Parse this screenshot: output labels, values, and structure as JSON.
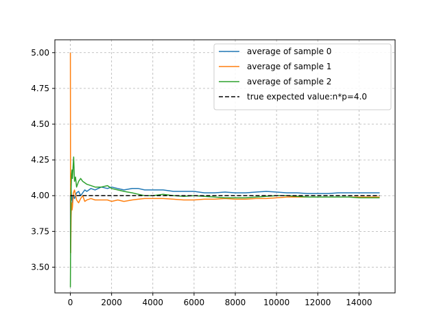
{
  "chart_data": {
    "type": "line",
    "title": "",
    "xlabel": "",
    "ylabel": "",
    "xlim": [
      -750,
      15750
    ],
    "ylim": [
      3.32,
      5.09
    ],
    "xticks": [
      0,
      2000,
      4000,
      6000,
      8000,
      10000,
      12000,
      14000
    ],
    "yticks": [
      3.5,
      3.75,
      4.0,
      4.25,
      4.5,
      4.75,
      5.0
    ],
    "xtick_labels": [
      "0",
      "2000",
      "4000",
      "6000",
      "8000",
      "10000",
      "12000",
      "14000"
    ],
    "ytick_labels": [
      "3.50",
      "3.75",
      "4.00",
      "4.25",
      "4.50",
      "4.75",
      "5.00"
    ],
    "grid": true,
    "legend_position": "top-right",
    "series": [
      {
        "name": "average of sample 0",
        "color": "#1f77b4",
        "style": "solid",
        "x": [
          1,
          10,
          20,
          40,
          60,
          80,
          100,
          150,
          200,
          300,
          400,
          500,
          600,
          700,
          800,
          1000,
          1200,
          1500,
          1800,
          2000,
          2300,
          2600,
          3000,
          3300,
          3600,
          4000,
          4500,
          5000,
          5500,
          6000,
          6500,
          7000,
          7500,
          8000,
          8500,
          9000,
          9500,
          10000,
          10500,
          11000,
          11500,
          12000,
          12500,
          13000,
          13500,
          14000,
          14500,
          15000
        ],
        "y": [
          4.0,
          3.6,
          3.9,
          4.05,
          3.97,
          4.0,
          3.95,
          4.0,
          3.98,
          4.02,
          4.03,
          4.0,
          4.02,
          4.04,
          4.03,
          4.05,
          4.04,
          4.06,
          4.05,
          4.06,
          4.05,
          4.04,
          4.05,
          4.05,
          4.04,
          4.04,
          4.04,
          4.03,
          4.03,
          4.03,
          4.02,
          4.02,
          4.025,
          4.02,
          4.02,
          4.025,
          4.03,
          4.025,
          4.02,
          4.02,
          4.015,
          4.015,
          4.015,
          4.02,
          4.02,
          4.02,
          4.02,
          4.02
        ]
      },
      {
        "name": "average of sample 1",
        "color": "#ff7f0e",
        "style": "solid",
        "x": [
          1,
          5,
          10,
          20,
          40,
          60,
          80,
          100,
          150,
          200,
          300,
          400,
          500,
          600,
          700,
          800,
          1000,
          1200,
          1500,
          1800,
          2000,
          2300,
          2600,
          3000,
          3300,
          3600,
          4000,
          4500,
          5000,
          5500,
          6000,
          6500,
          7000,
          7500,
          8000,
          8500,
          9000,
          9500,
          10000,
          10500,
          11000,
          11500,
          12000,
          12500,
          13000,
          13500,
          14000,
          14500,
          15000
        ],
        "y": [
          5.0,
          4.6,
          4.2,
          3.6,
          3.85,
          3.95,
          3.9,
          3.92,
          4.02,
          4.04,
          3.97,
          3.95,
          3.98,
          4.0,
          3.96,
          3.97,
          3.98,
          3.97,
          3.97,
          3.97,
          3.96,
          3.97,
          3.96,
          3.97,
          3.975,
          3.98,
          3.98,
          3.98,
          3.975,
          3.97,
          3.97,
          3.975,
          3.975,
          3.98,
          3.975,
          3.975,
          3.98,
          3.98,
          3.985,
          3.99,
          3.99,
          3.99,
          3.99,
          3.99,
          3.99,
          3.99,
          3.99,
          3.99,
          3.99
        ]
      },
      {
        "name": "average of sample 2",
        "color": "#2ca02c",
        "style": "solid",
        "x": [
          1,
          10,
          20,
          40,
          60,
          80,
          100,
          130,
          160,
          200,
          250,
          300,
          400,
          500,
          600,
          800,
          1000,
          1200,
          1500,
          1800,
          2000,
          2300,
          2600,
          3000,
          3300,
          3600,
          4000,
          4500,
          5000,
          5500,
          6000,
          6500,
          7000,
          7500,
          8000,
          8500,
          9000,
          9500,
          10000,
          10500,
          11000,
          11500,
          12000,
          12500,
          13000,
          13500,
          14000,
          14500,
          15000
        ],
        "y": [
          3.36,
          3.55,
          3.8,
          4.05,
          4.15,
          4.18,
          4.12,
          4.2,
          4.27,
          4.1,
          4.13,
          4.06,
          4.1,
          4.12,
          4.1,
          4.08,
          4.07,
          4.06,
          4.06,
          4.07,
          4.05,
          4.04,
          4.03,
          4.02,
          4.01,
          4.0,
          4.0,
          4.01,
          4.0,
          3.995,
          4.0,
          3.995,
          3.99,
          3.985,
          3.985,
          3.985,
          3.99,
          3.995,
          4.0,
          4.0,
          3.995,
          3.99,
          3.99,
          3.99,
          3.99,
          3.99,
          3.985,
          3.985,
          3.985
        ]
      },
      {
        "name": "true expected value:n*p=4.0",
        "color": "#000000",
        "style": "dashed",
        "x": [
          0,
          15000
        ],
        "y": [
          4.0,
          4.0
        ]
      }
    ]
  }
}
